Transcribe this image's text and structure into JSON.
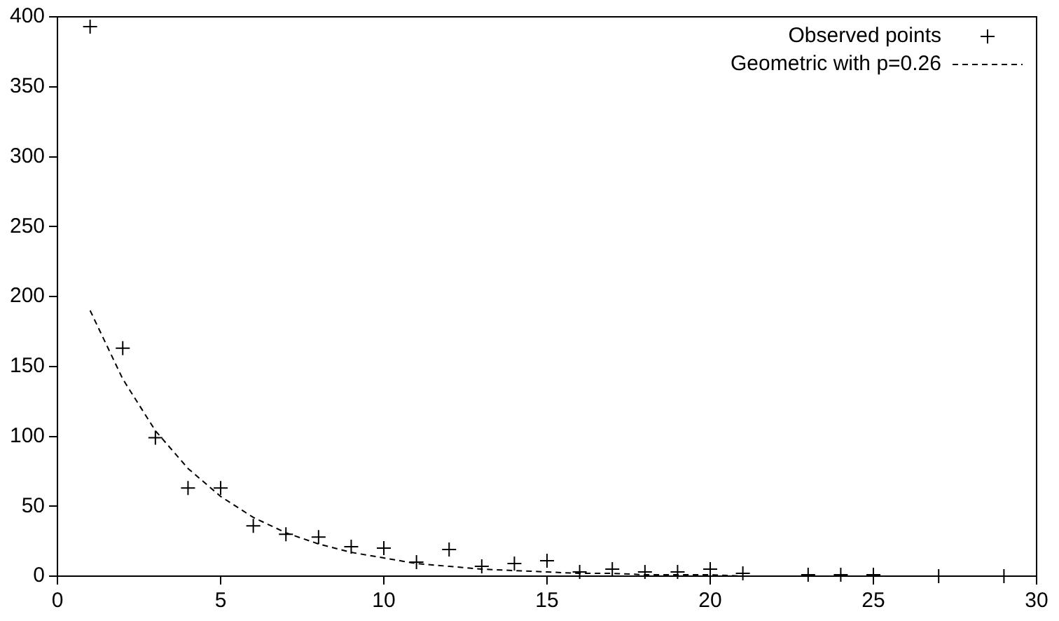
{
  "chart_data": {
    "type": "scatter",
    "xlim": [
      0,
      30
    ],
    "ylim": [
      0,
      400
    ],
    "xticks": [
      0,
      5,
      10,
      15,
      20,
      25,
      30
    ],
    "yticks": [
      0,
      50,
      100,
      150,
      200,
      250,
      300,
      350,
      400
    ],
    "grid": false,
    "legend": "top right",
    "series": [
      {
        "name": "Observed points",
        "type": "scatter",
        "color": "#000000",
        "marker": "cross",
        "x": [
          1,
          2,
          3,
          4,
          5,
          6,
          7,
          8,
          9,
          10,
          11,
          12,
          13,
          14,
          15,
          16,
          17,
          18,
          19,
          20,
          21,
          23,
          24,
          25,
          27,
          29
        ],
        "values": [
          393,
          163,
          99,
          63,
          63,
          36,
          30,
          28,
          21,
          20,
          10,
          19,
          7,
          9,
          11,
          3,
          5,
          3,
          3,
          5,
          2,
          1,
          1,
          1,
          0,
          0
        ]
      },
      {
        "name": "Geometric with p=0.26",
        "type": "line",
        "color": "#000000",
        "marker": "none",
        "line_style": "dashed",
        "x": [
          1,
          2,
          3,
          4,
          5,
          6,
          7,
          8,
          9,
          10,
          11,
          12,
          13,
          14,
          15,
          16,
          17,
          18,
          19,
          20,
          21,
          22,
          23,
          24,
          25,
          26,
          27,
          28,
          29
        ],
        "values": [
          190,
          141,
          104,
          77,
          57,
          42,
          31,
          23,
          17,
          13,
          9,
          7,
          5,
          4,
          3,
          2,
          2,
          1,
          1,
          1,
          0,
          0,
          0,
          0,
          0,
          0,
          0,
          0,
          0
        ]
      }
    ]
  }
}
